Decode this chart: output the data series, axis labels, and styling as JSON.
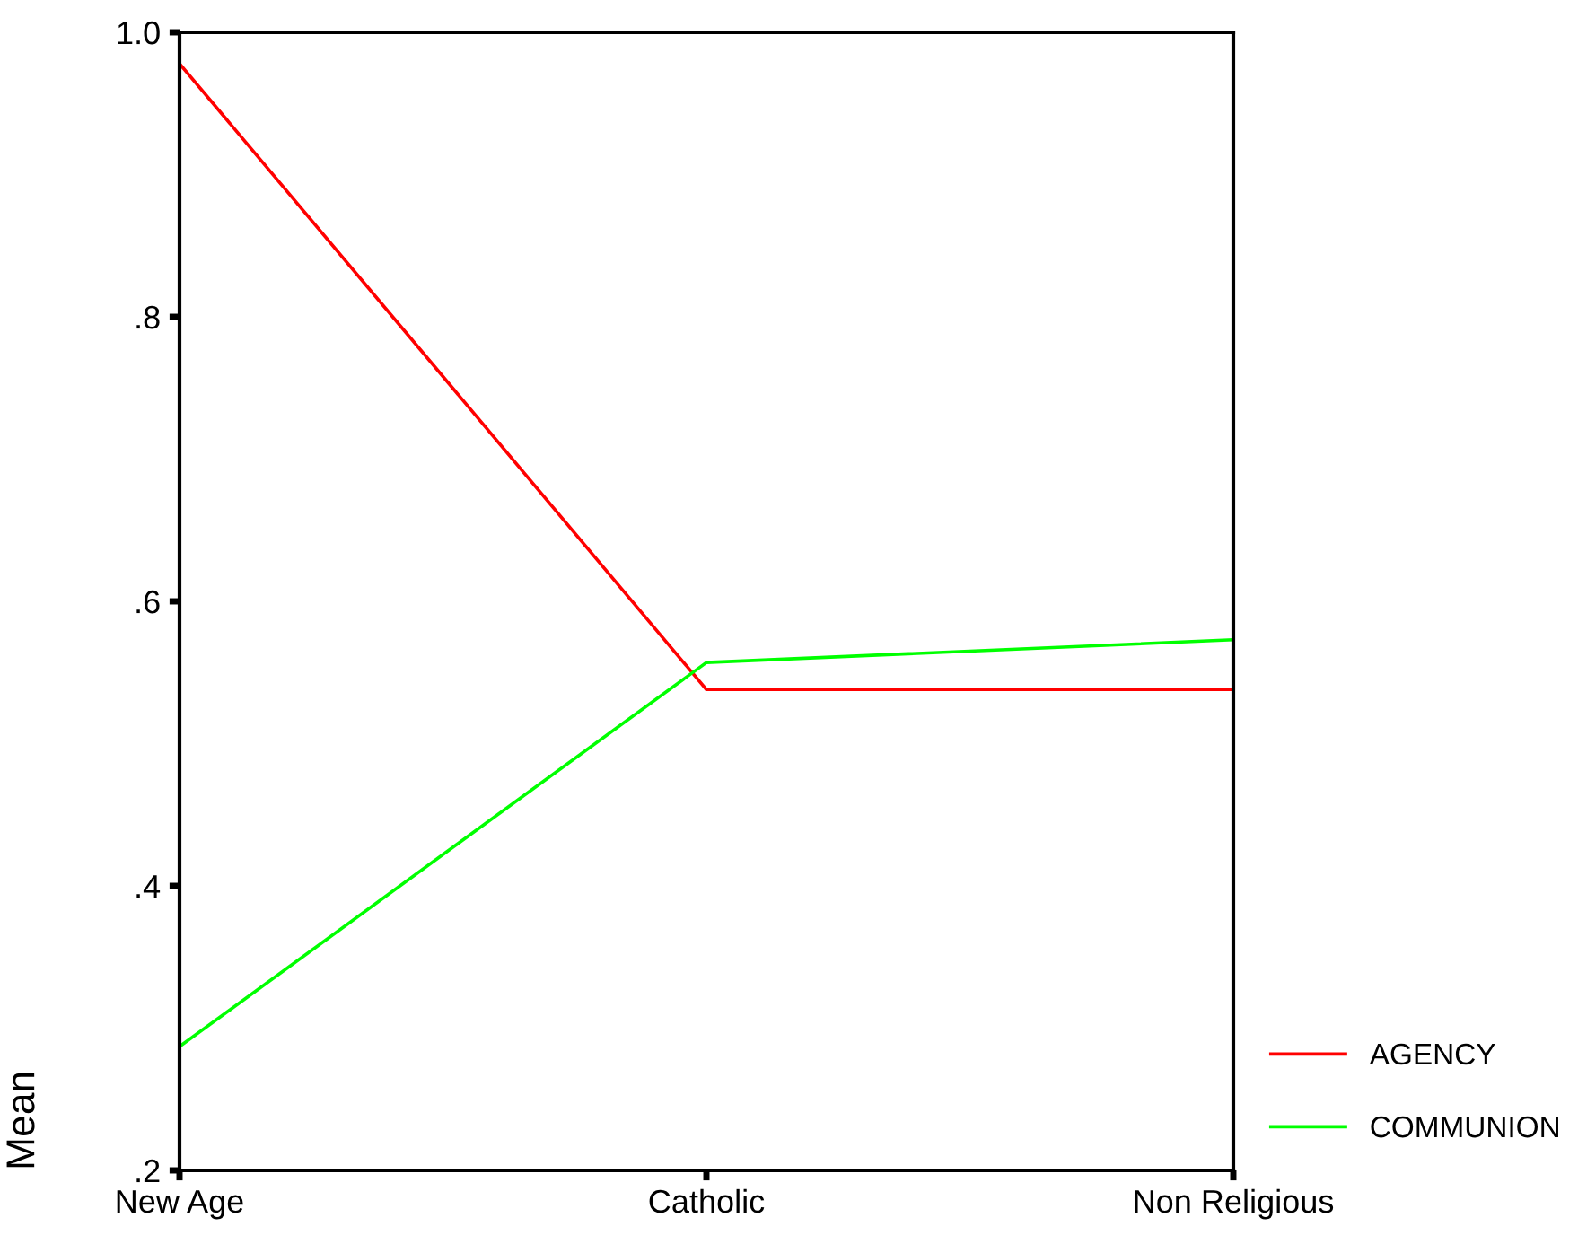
{
  "chart_data": {
    "type": "line",
    "ylabel": "Mean",
    "categories": [
      "New Age",
      "Catholic",
      "Non Religious"
    ],
    "series": [
      {
        "name": "AGENCY",
        "color": "#ff0000",
        "values": [
          0.978,
          0.538,
          0.538
        ]
      },
      {
        "name": "COMMUNION",
        "color": "#00ff00",
        "values": [
          0.287,
          0.557,
          0.573
        ]
      }
    ],
    "ylim": [
      0.2,
      1.0
    ],
    "yticks": [
      {
        "value": 0.2,
        "label": ".2"
      },
      {
        "value": 0.4,
        "label": ".4"
      },
      {
        "value": 0.6,
        "label": ".6"
      },
      {
        "value": 0.8,
        "label": ".8"
      },
      {
        "value": 1.0,
        "label": "1.0"
      }
    ],
    "grid": false,
    "legend": "right",
    "marker": "none",
    "line_style": "solid"
  }
}
